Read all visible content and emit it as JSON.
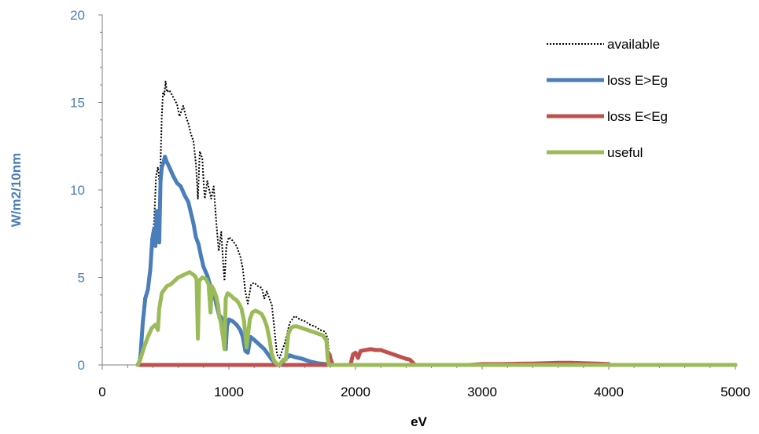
{
  "chart_data": {
    "type": "line",
    "title": "",
    "xlabel": "eV",
    "ylabel": "W/m2/10nm",
    "xlim": [
      0,
      5000
    ],
    "ylim": [
      0,
      20
    ],
    "x_ticks": [
      0,
      1000,
      2000,
      3000,
      4000,
      5000
    ],
    "y_ticks": [
      0,
      5,
      10,
      15,
      20
    ],
    "x_tick_labels": [
      "0",
      "1000",
      "2000",
      "3000",
      "4000",
      "5000"
    ],
    "y_tick_labels": [
      "0",
      "5",
      "10",
      "15",
      "20"
    ],
    "grid": false,
    "legend_position": "top-right",
    "series": [
      {
        "name": "available",
        "color": "#000000",
        "style": "dotted",
        "points": [
          [
            280,
            0
          ],
          [
            300,
            0.8
          ],
          [
            330,
            3.8
          ],
          [
            360,
            4.4
          ],
          [
            390,
            6.5
          ],
          [
            410,
            8.2
          ],
          [
            425,
            10.8
          ],
          [
            440,
            11.3
          ],
          [
            455,
            10.2
          ],
          [
            470,
            14.2
          ],
          [
            480,
            15.6
          ],
          [
            490,
            15.4
          ],
          [
            500,
            16.2
          ],
          [
            510,
            15.6
          ],
          [
            530,
            15.7
          ],
          [
            560,
            15.3
          ],
          [
            590,
            14.9
          ],
          [
            610,
            14.2
          ],
          [
            640,
            14.8
          ],
          [
            660,
            14.2
          ],
          [
            680,
            13.8
          ],
          [
            700,
            13.2
          ],
          [
            720,
            12.8
          ],
          [
            740,
            11.5
          ],
          [
            755,
            9.5
          ],
          [
            770,
            12.2
          ],
          [
            790,
            11.8
          ],
          [
            800,
            10.5
          ],
          [
            810,
            9.5
          ],
          [
            830,
            10.5
          ],
          [
            860,
            9.5
          ],
          [
            880,
            10.2
          ],
          [
            900,
            8.2
          ],
          [
            920,
            6.5
          ],
          [
            940,
            7.6
          ],
          [
            955,
            5.8
          ],
          [
            965,
            4.8
          ],
          [
            980,
            6.8
          ],
          [
            1000,
            7.3
          ],
          [
            1030,
            7.1
          ],
          [
            1060,
            6.8
          ],
          [
            1090,
            6.2
          ],
          [
            1110,
            5.5
          ],
          [
            1130,
            4.2
          ],
          [
            1150,
            3.5
          ],
          [
            1175,
            4.6
          ],
          [
            1200,
            4.7
          ],
          [
            1230,
            4.5
          ],
          [
            1260,
            4.4
          ],
          [
            1280,
            3.8
          ],
          [
            1300,
            4.2
          ],
          [
            1320,
            3.8
          ],
          [
            1340,
            3.4
          ],
          [
            1360,
            2.0
          ],
          [
            1380,
            0.6
          ],
          [
            1400,
            0.4
          ],
          [
            1440,
            1.2
          ],
          [
            1460,
            1.8
          ],
          [
            1480,
            2.4
          ],
          [
            1500,
            2.6
          ],
          [
            1520,
            2.8
          ],
          [
            1560,
            2.6
          ],
          [
            1600,
            2.5
          ],
          [
            1640,
            2.3
          ],
          [
            1680,
            2.2
          ],
          [
            1720,
            2.0
          ],
          [
            1760,
            1.9
          ],
          [
            1780,
            1.5
          ],
          [
            1800,
            0
          ]
        ]
      },
      {
        "name": "loss E>Eg",
        "color": "#4A7EBB",
        "style": "solid",
        "points": [
          [
            280,
            0
          ],
          [
            300,
            0.3
          ],
          [
            320,
            2.4
          ],
          [
            340,
            3.8
          ],
          [
            360,
            4.3
          ],
          [
            380,
            5.5
          ],
          [
            395,
            7.2
          ],
          [
            410,
            7.8
          ],
          [
            420,
            6.8
          ],
          [
            430,
            8.8
          ],
          [
            440,
            8.5
          ],
          [
            450,
            7.0
          ],
          [
            460,
            10.5
          ],
          [
            470,
            11.3
          ],
          [
            485,
            11.6
          ],
          [
            495,
            11.9
          ],
          [
            510,
            11.6
          ],
          [
            530,
            11.3
          ],
          [
            560,
            10.8
          ],
          [
            590,
            10.4
          ],
          [
            620,
            10.2
          ],
          [
            650,
            9.7
          ],
          [
            680,
            9.3
          ],
          [
            700,
            8.7
          ],
          [
            720,
            8.1
          ],
          [
            740,
            7.3
          ],
          [
            760,
            6.9
          ],
          [
            780,
            6.2
          ],
          [
            800,
            5.6
          ],
          [
            830,
            5.1
          ],
          [
            850,
            4.6
          ],
          [
            880,
            4.1
          ],
          [
            900,
            3.5
          ],
          [
            920,
            2.9
          ],
          [
            940,
            2.7
          ],
          [
            955,
            2.0
          ],
          [
            965,
            1.5
          ],
          [
            975,
            0.9
          ],
          [
            985,
            2.2
          ],
          [
            1000,
            2.6
          ],
          [
            1030,
            2.5
          ],
          [
            1060,
            2.3
          ],
          [
            1090,
            2.0
          ],
          [
            1110,
            1.6
          ],
          [
            1130,
            0.8
          ],
          [
            1150,
            0.7
          ],
          [
            1170,
            1.6
          ],
          [
            1190,
            1.5
          ],
          [
            1220,
            1.3
          ],
          [
            1250,
            1.1
          ],
          [
            1280,
            0.9
          ],
          [
            1310,
            0.6
          ],
          [
            1340,
            0.3
          ],
          [
            1360,
            0.15
          ],
          [
            1380,
            0.05
          ],
          [
            1400,
            0
          ],
          [
            1440,
            0.3
          ],
          [
            1480,
            0.55
          ],
          [
            1520,
            0.45
          ],
          [
            1580,
            0.35
          ],
          [
            1640,
            0.2
          ],
          [
            1700,
            0.1
          ],
          [
            1760,
            0.05
          ],
          [
            1800,
            0
          ],
          [
            5000,
            0
          ]
        ]
      },
      {
        "name": "loss E<Eg",
        "color": "#C0504D",
        "style": "solid",
        "points": [
          [
            280,
            0
          ],
          [
            1780,
            0
          ],
          [
            1795,
            0.6
          ],
          [
            1805,
            0.3
          ],
          [
            1820,
            0
          ],
          [
            1960,
            0
          ],
          [
            1980,
            0.6
          ],
          [
            2000,
            0.7
          ],
          [
            2020,
            0.4
          ],
          [
            2040,
            0.8
          ],
          [
            2080,
            0.85
          ],
          [
            2120,
            0.9
          ],
          [
            2160,
            0.85
          ],
          [
            2200,
            0.85
          ],
          [
            2240,
            0.75
          ],
          [
            2280,
            0.65
          ],
          [
            2320,
            0.55
          ],
          [
            2360,
            0.45
          ],
          [
            2400,
            0.35
          ],
          [
            2430,
            0.3
          ],
          [
            2450,
            0.15
          ],
          [
            2470,
            0
          ],
          [
            2900,
            0
          ],
          [
            3000,
            0.05
          ],
          [
            3100,
            0.05
          ],
          [
            3200,
            0.06
          ],
          [
            3300,
            0.07
          ],
          [
            3400,
            0.08
          ],
          [
            3500,
            0.1
          ],
          [
            3600,
            0.12
          ],
          [
            3700,
            0.12
          ],
          [
            3800,
            0.1
          ],
          [
            3900,
            0.08
          ],
          [
            4000,
            0.05
          ],
          [
            4010,
            0
          ]
        ]
      },
      {
        "name": "useful",
        "color": "#9BBB59",
        "style": "solid",
        "points": [
          [
            280,
            0
          ],
          [
            300,
            0.3
          ],
          [
            330,
            1.0
          ],
          [
            360,
            1.6
          ],
          [
            390,
            2.1
          ],
          [
            420,
            2.3
          ],
          [
            440,
            2.0
          ],
          [
            450,
            3.2
          ],
          [
            470,
            4.1
          ],
          [
            490,
            4.3
          ],
          [
            510,
            4.5
          ],
          [
            540,
            4.6
          ],
          [
            570,
            4.8
          ],
          [
            600,
            5.0
          ],
          [
            630,
            5.1
          ],
          [
            660,
            5.2
          ],
          [
            690,
            5.3
          ],
          [
            710,
            5.2
          ],
          [
            730,
            5.1
          ],
          [
            745,
            4.9
          ],
          [
            755,
            1.5
          ],
          [
            765,
            4.8
          ],
          [
            790,
            5.0
          ],
          [
            820,
            4.9
          ],
          [
            840,
            4.6
          ],
          [
            855,
            3.0
          ],
          [
            865,
            4.5
          ],
          [
            880,
            4.3
          ],
          [
            900,
            3.9
          ],
          [
            915,
            3.4
          ],
          [
            925,
            2.7
          ],
          [
            935,
            2.5
          ],
          [
            955,
            1.5
          ],
          [
            965,
            0.9
          ],
          [
            975,
            3.8
          ],
          [
            990,
            4.1
          ],
          [
            1010,
            4.0
          ],
          [
            1040,
            3.8
          ],
          [
            1060,
            3.7
          ],
          [
            1080,
            3.5
          ],
          [
            1100,
            3.2
          ],
          [
            1120,
            2.5
          ],
          [
            1140,
            1.0
          ],
          [
            1150,
            1.6
          ],
          [
            1165,
            2.6
          ],
          [
            1185,
            3.0
          ],
          [
            1210,
            3.1
          ],
          [
            1240,
            3.0
          ],
          [
            1260,
            2.9
          ],
          [
            1280,
            2.6
          ],
          [
            1300,
            2.2
          ],
          [
            1320,
            1.5
          ],
          [
            1340,
            0.6
          ],
          [
            1360,
            0.2
          ],
          [
            1380,
            0.05
          ],
          [
            1400,
            0
          ],
          [
            1430,
            0.3
          ],
          [
            1450,
            0.3
          ],
          [
            1470,
            1.8
          ],
          [
            1490,
            2.1
          ],
          [
            1510,
            2.2
          ],
          [
            1540,
            2.2
          ],
          [
            1580,
            2.1
          ],
          [
            1620,
            2.0
          ],
          [
            1660,
            1.9
          ],
          [
            1700,
            1.8
          ],
          [
            1740,
            1.7
          ],
          [
            1770,
            1.4
          ],
          [
            1780,
            0.4
          ],
          [
            1790,
            0
          ],
          [
            5000,
            0
          ]
        ]
      }
    ]
  }
}
